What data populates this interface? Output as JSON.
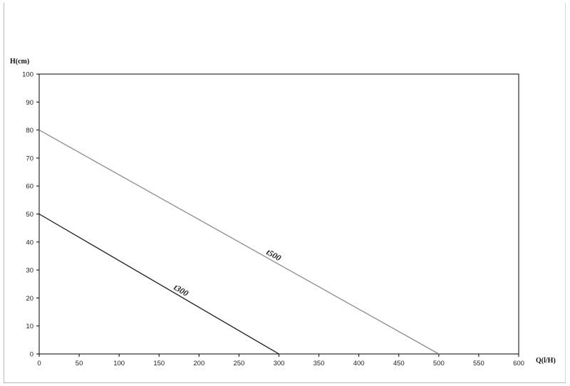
{
  "chart_data": {
    "type": "line",
    "title": "",
    "xlabel": "Q(l/H)",
    "ylabel": "H(cm)",
    "xlim": [
      0,
      600
    ],
    "ylim": [
      0,
      100
    ],
    "xticks": [
      "0",
      "50",
      "100",
      "150",
      "200",
      "250",
      "300",
      "350",
      "400",
      "450",
      "500",
      "550",
      "600"
    ],
    "yticks": [
      "0",
      "10",
      "20",
      "30",
      "40",
      "50",
      "60",
      "70",
      "80",
      "90",
      "100"
    ],
    "grid": false,
    "legend": "none",
    "series": [
      {
        "name": "t300",
        "color": "#1a1a1a",
        "x": [
          0,
          300
        ],
        "y": [
          50,
          0
        ]
      },
      {
        "name": "t500",
        "color": "#8c8c8c",
        "x": [
          0,
          500
        ],
        "y": [
          80,
          0
        ]
      }
    ]
  }
}
